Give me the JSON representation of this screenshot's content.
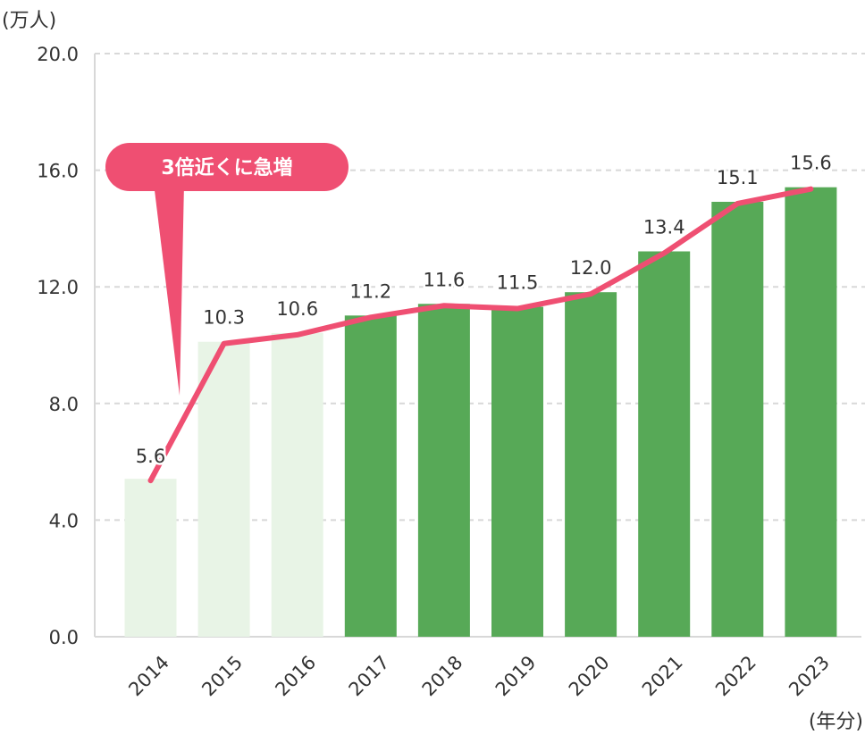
{
  "chart_data": {
    "type": "bar",
    "title": "",
    "ylabel": "(万人)",
    "xlabel": "(年分)",
    "ylim": [
      0,
      20
    ],
    "yticks": [
      0.0,
      4.0,
      8.0,
      12.0,
      16.0,
      20.0
    ],
    "ytick_labels": [
      "0.0",
      "4.0",
      "8.0",
      "12.0",
      "16.0",
      "20.0"
    ],
    "grid": true,
    "categories": [
      "2014",
      "2015",
      "2016",
      "2017",
      "2018",
      "2019",
      "2020",
      "2021",
      "2022",
      "2023"
    ],
    "series": [
      {
        "name": "bars",
        "type": "bar",
        "values": [
          5.6,
          10.3,
          10.6,
          11.2,
          11.6,
          11.5,
          12.0,
          13.4,
          15.1,
          15.6
        ],
        "colors": [
          "#e8f4e6",
          "#e8f4e6",
          "#e8f4e6",
          "#57a957",
          "#57a957",
          "#57a957",
          "#57a957",
          "#57a957",
          "#57a957",
          "#57a957"
        ]
      },
      {
        "name": "line",
        "type": "line",
        "values": [
          5.6,
          10.3,
          10.6,
          11.2,
          11.6,
          11.5,
          12.0,
          13.4,
          15.1,
          15.6
        ],
        "color": "#ef4f72"
      }
    ],
    "data_labels": [
      "5.6",
      "10.3",
      "10.6",
      "11.2",
      "11.6",
      "11.5",
      "12.0",
      "13.4",
      "15.1",
      "15.6"
    ],
    "annotations": [
      {
        "text": "3倍近くに急増",
        "points_to": "2014",
        "style": "pink callout bubble"
      }
    ]
  },
  "colors": {
    "bar_light": "#e8f4e6",
    "bar_dark": "#57a957",
    "line": "#ef4f72",
    "callout": "#ef4f72",
    "grid": "#d8d8d8",
    "axis": "#d8d8d8",
    "text": "#333333"
  }
}
